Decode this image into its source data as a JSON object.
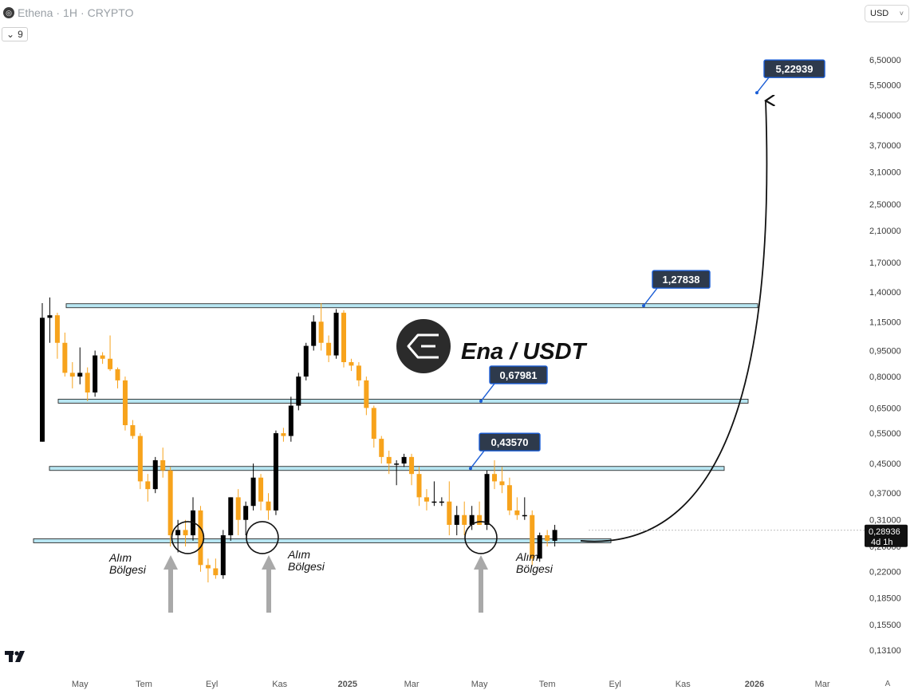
{
  "header": {
    "symbol": "Ethena",
    "timeframe": "1H",
    "exchange": "CRYPTO",
    "separator": "·",
    "indicator_value": "9",
    "currency": "USD",
    "currency_dropdown": "˅",
    "a_label": "A"
  },
  "icons": {
    "logo": "ethena-logo-icon",
    "chevron": "chevron-down-icon",
    "tv": "tradingview-logo-icon"
  },
  "chart_data": {
    "type": "candlestick",
    "title": "Ena / USDT",
    "price_scale": "log",
    "y_tick_labels": [
      "6,50000",
      "5,50000",
      "4,50000",
      "3,70000",
      "3,10000",
      "2,50000",
      "2,10000",
      "1,70000",
      "1,40000",
      "1,15000",
      "0,95000",
      "0,80000",
      "0,65000",
      "0,55000",
      "0,45000",
      "0,37000",
      "0,31000",
      "0,26000",
      "0,22000",
      "0,18500",
      "0,15500",
      "0,13100"
    ],
    "y_tick_values": [
      6.5,
      5.5,
      4.5,
      3.7,
      3.1,
      2.5,
      2.1,
      1.7,
      1.4,
      1.15,
      0.95,
      0.8,
      0.65,
      0.55,
      0.45,
      0.37,
      0.31,
      0.26,
      0.22,
      0.185,
      0.155,
      0.131
    ],
    "x_tick_labels": [
      "May",
      "Tem",
      "Eyl",
      "Kas",
      "2025",
      "Mar",
      "May",
      "Tem",
      "Eyl",
      "Kas",
      "2026",
      "Mar"
    ],
    "x_tick_index": [
      5,
      13.5,
      22.5,
      31.5,
      40.5,
      49,
      58,
      67,
      76,
      85,
      94.5,
      103.5
    ],
    "last_price": "0,28936",
    "last_price_value": 0.28936,
    "countdown": "4d 1h",
    "levels": [
      {
        "label": "1,27838",
        "value": 1.27838
      },
      {
        "label": "0,67981",
        "value": 0.67981
      },
      {
        "label": "0,43570",
        "value": 0.4357
      }
    ],
    "support_value": 0.27,
    "target": {
      "label": "5,22939",
      "value": 5.22939
    },
    "annotations": [
      "Alım\nBölgesi",
      "Alım\nBölgesi",
      "Alım\nBölgesi"
    ],
    "up_color": "#000000",
    "down_color": "#f7a31c",
    "level_color": "#b8e6f2",
    "label_bg": "#2e3a4c",
    "label_border": "#1a5dd6",
    "candles": [
      {
        "o": 0.52,
        "h": 1.3,
        "l": 0.52,
        "c": 1.18
      },
      {
        "o": 1.18,
        "h": 1.35,
        "l": 1.0,
        "c": 1.2
      },
      {
        "o": 1.2,
        "h": 1.22,
        "l": 0.9,
        "c": 1.0
      },
      {
        "o": 1.0,
        "h": 1.07,
        "l": 0.8,
        "c": 0.82
      },
      {
        "o": 0.82,
        "h": 0.88,
        "l": 0.74,
        "c": 0.8
      },
      {
        "o": 0.8,
        "h": 0.97,
        "l": 0.76,
        "c": 0.82
      },
      {
        "o": 0.82,
        "h": 0.85,
        "l": 0.68,
        "c": 0.72
      },
      {
        "o": 0.72,
        "h": 0.95,
        "l": 0.7,
        "c": 0.92
      },
      {
        "o": 0.92,
        "h": 0.94,
        "l": 0.87,
        "c": 0.9
      },
      {
        "o": 0.9,
        "h": 1.05,
        "l": 0.83,
        "c": 0.84
      },
      {
        "o": 0.84,
        "h": 0.85,
        "l": 0.74,
        "c": 0.78
      },
      {
        "o": 0.78,
        "h": 0.8,
        "l": 0.56,
        "c": 0.58
      },
      {
        "o": 0.58,
        "h": 0.6,
        "l": 0.53,
        "c": 0.54
      },
      {
        "o": 0.54,
        "h": 0.55,
        "l": 0.38,
        "c": 0.4
      },
      {
        "o": 0.4,
        "h": 0.42,
        "l": 0.35,
        "c": 0.38
      },
      {
        "o": 0.38,
        "h": 0.47,
        "l": 0.37,
        "c": 0.46
      },
      {
        "o": 0.46,
        "h": 0.5,
        "l": 0.41,
        "c": 0.43
      },
      {
        "o": 0.43,
        "h": 0.44,
        "l": 0.26,
        "c": 0.28
      },
      {
        "o": 0.28,
        "h": 0.31,
        "l": 0.25,
        "c": 0.29
      },
      {
        "o": 0.29,
        "h": 0.31,
        "l": 0.26,
        "c": 0.28
      },
      {
        "o": 0.28,
        "h": 0.36,
        "l": 0.27,
        "c": 0.33
      },
      {
        "o": 0.33,
        "h": 0.34,
        "l": 0.22,
        "c": 0.23
      },
      {
        "o": 0.23,
        "h": 0.24,
        "l": 0.205,
        "c": 0.225
      },
      {
        "o": 0.225,
        "h": 0.24,
        "l": 0.21,
        "c": 0.215
      },
      {
        "o": 0.215,
        "h": 0.29,
        "l": 0.21,
        "c": 0.28
      },
      {
        "o": 0.28,
        "h": 0.36,
        "l": 0.27,
        "c": 0.36
      },
      {
        "o": 0.36,
        "h": 0.38,
        "l": 0.28,
        "c": 0.31
      },
      {
        "o": 0.31,
        "h": 0.35,
        "l": 0.28,
        "c": 0.34
      },
      {
        "o": 0.34,
        "h": 0.45,
        "l": 0.33,
        "c": 0.41
      },
      {
        "o": 0.41,
        "h": 0.42,
        "l": 0.33,
        "c": 0.35
      },
      {
        "o": 0.35,
        "h": 0.37,
        "l": 0.31,
        "c": 0.33
      },
      {
        "o": 0.33,
        "h": 0.56,
        "l": 0.32,
        "c": 0.55
      },
      {
        "o": 0.55,
        "h": 0.57,
        "l": 0.52,
        "c": 0.54
      },
      {
        "o": 0.54,
        "h": 0.7,
        "l": 0.52,
        "c": 0.66
      },
      {
        "o": 0.66,
        "h": 0.82,
        "l": 0.64,
        "c": 0.8
      },
      {
        "o": 0.8,
        "h": 1.0,
        "l": 0.78,
        "c": 0.98
      },
      {
        "o": 0.98,
        "h": 1.2,
        "l": 0.95,
        "c": 1.15
      },
      {
        "o": 1.15,
        "h": 1.3,
        "l": 0.95,
        "c": 1.0
      },
      {
        "o": 1.0,
        "h": 1.05,
        "l": 0.88,
        "c": 0.92
      },
      {
        "o": 0.92,
        "h": 1.25,
        "l": 0.9,
        "c": 1.22
      },
      {
        "o": 1.22,
        "h": 1.24,
        "l": 0.85,
        "c": 0.88
      },
      {
        "o": 0.88,
        "h": 0.9,
        "l": 0.83,
        "c": 0.86
      },
      {
        "o": 0.86,
        "h": 0.88,
        "l": 0.75,
        "c": 0.78
      },
      {
        "o": 0.78,
        "h": 0.8,
        "l": 0.62,
        "c": 0.65
      },
      {
        "o": 0.65,
        "h": 0.66,
        "l": 0.5,
        "c": 0.53
      },
      {
        "o": 0.53,
        "h": 0.54,
        "l": 0.45,
        "c": 0.47
      },
      {
        "o": 0.47,
        "h": 0.49,
        "l": 0.42,
        "c": 0.45
      },
      {
        "o": 0.45,
        "h": 0.46,
        "l": 0.39,
        "c": 0.45
      },
      {
        "o": 0.45,
        "h": 0.48,
        "l": 0.44,
        "c": 0.47
      },
      {
        "o": 0.47,
        "h": 0.48,
        "l": 0.39,
        "c": 0.42
      },
      {
        "o": 0.42,
        "h": 0.44,
        "l": 0.34,
        "c": 0.36
      },
      {
        "o": 0.36,
        "h": 0.38,
        "l": 0.33,
        "c": 0.35
      },
      {
        "o": 0.35,
        "h": 0.4,
        "l": 0.34,
        "c": 0.35
      },
      {
        "o": 0.35,
        "h": 0.36,
        "l": 0.34,
        "c": 0.35
      },
      {
        "o": 0.35,
        "h": 0.4,
        "l": 0.28,
        "c": 0.3
      },
      {
        "o": 0.3,
        "h": 0.34,
        "l": 0.28,
        "c": 0.32
      },
      {
        "o": 0.32,
        "h": 0.35,
        "l": 0.28,
        "c": 0.3
      },
      {
        "o": 0.3,
        "h": 0.34,
        "l": 0.29,
        "c": 0.32
      },
      {
        "o": 0.32,
        "h": 0.35,
        "l": 0.3,
        "c": 0.3
      },
      {
        "o": 0.3,
        "h": 0.43,
        "l": 0.29,
        "c": 0.42
      },
      {
        "o": 0.42,
        "h": 0.46,
        "l": 0.38,
        "c": 0.4
      },
      {
        "o": 0.4,
        "h": 0.44,
        "l": 0.37,
        "c": 0.39
      },
      {
        "o": 0.39,
        "h": 0.41,
        "l": 0.32,
        "c": 0.33
      },
      {
        "o": 0.33,
        "h": 0.36,
        "l": 0.31,
        "c": 0.32
      },
      {
        "o": 0.32,
        "h": 0.36,
        "l": 0.31,
        "c": 0.32
      },
      {
        "o": 0.32,
        "h": 0.33,
        "l": 0.23,
        "c": 0.24
      },
      {
        "o": 0.24,
        "h": 0.285,
        "l": 0.235,
        "c": 0.28
      },
      {
        "o": 0.28,
        "h": 0.29,
        "l": 0.26,
        "c": 0.27
      },
      {
        "o": 0.27,
        "h": 0.3,
        "l": 0.26,
        "c": 0.29
      }
    ]
  }
}
